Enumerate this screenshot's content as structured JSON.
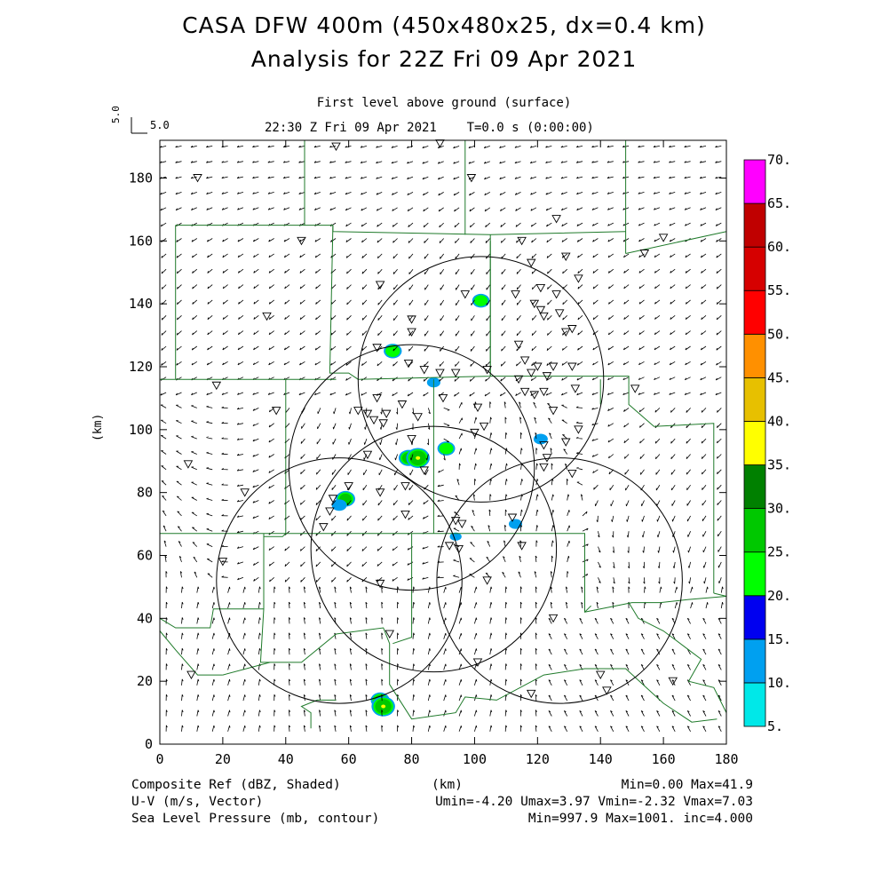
{
  "header": {
    "title1": "CASA DFW 400m (450x480x25, dx=0.4 km)",
    "title2": "Analysis for 22Z Fri 09 Apr 2021",
    "level": "First level above ground (surface)",
    "valid_time": "22:30 Z Fri 09 Apr 2021    T=0.0 s (0:00:00)",
    "ref_vector_label": "5.0",
    "ref_vector_text": "5.0"
  },
  "footer": {
    "left": [
      "Composite Ref (dBZ, Shaded)",
      "U-V (m/s, Vector)",
      "Sea Level Pressure (mb, contour)"
    ],
    "center": "(km)",
    "right": [
      "Min=0.00 Max=41.9",
      "Umin=-4.20 Umax=3.97 Vmin=-2.32 Vmax=7.03",
      "Min=997.9 Max=1001. inc=4.000"
    ]
  },
  "colors": {
    "boundary": "#1f7a2a",
    "ring": "#000000",
    "vector": "#000000"
  },
  "chart_data": {
    "type": "heatmap",
    "xlabel": "",
    "ylabel": "(km)",
    "xlim": [
      0,
      180
    ],
    "ylim": [
      0,
      192
    ],
    "xticks": [
      0,
      20,
      40,
      60,
      80,
      100,
      120,
      140,
      160,
      180
    ],
    "yticks": [
      0,
      20,
      40,
      60,
      80,
      100,
      120,
      140,
      160,
      180
    ],
    "colorbar": {
      "labels": [
        "5.",
        "10.",
        "15.",
        "20.",
        "25.",
        "30.",
        "35.",
        "40.",
        "45.",
        "50.",
        "55.",
        "60.",
        "65.",
        "70."
      ],
      "colors": [
        "#00e8e8",
        "#00a0f0",
        "#0000f0",
        "#00ff00",
        "#00c800",
        "#008000",
        "#ffff00",
        "#e7c000",
        "#ff9000",
        "#ff0000",
        "#d60000",
        "#c00000",
        "#ff00ff"
      ]
    },
    "radar_rings": [
      {
        "cx": 102,
        "cy": 116,
        "r": 39
      },
      {
        "cx": 80,
        "cy": 88,
        "r": 39
      },
      {
        "cx": 57,
        "cy": 52,
        "r": 39
      },
      {
        "cx": 87,
        "cy": 62,
        "r": 39
      },
      {
        "cx": 127,
        "cy": 52,
        "r": 39
      }
    ],
    "reflectivity_cells": [
      {
        "x": 102,
        "y": 141,
        "dbz": 22
      },
      {
        "x": 74,
        "y": 125,
        "dbz": 24
      },
      {
        "x": 87,
        "y": 115,
        "dbz": 12
      },
      {
        "x": 121,
        "y": 97,
        "dbz": 14
      },
      {
        "x": 91,
        "y": 94,
        "dbz": 23
      },
      {
        "x": 79,
        "y": 91,
        "dbz": 28
      },
      {
        "x": 82,
        "y": 91,
        "dbz": 38
      },
      {
        "x": 59,
        "y": 78,
        "dbz": 27
      },
      {
        "x": 57,
        "y": 76,
        "dbz": 16
      },
      {
        "x": 113,
        "y": 70,
        "dbz": 12
      },
      {
        "x": 94,
        "y": 66,
        "dbz": 8
      },
      {
        "x": 70,
        "y": 14,
        "dbz": 26
      },
      {
        "x": 71,
        "y": 12,
        "dbz": 38
      }
    ],
    "stations": [
      [
        56,
        190
      ],
      [
        89,
        191
      ],
      [
        12,
        180
      ],
      [
        99,
        180
      ],
      [
        126,
        167
      ],
      [
        45,
        160
      ],
      [
        115,
        160
      ],
      [
        160,
        161
      ],
      [
        154,
        156
      ],
      [
        129,
        155
      ],
      [
        118,
        153
      ],
      [
        133,
        148
      ],
      [
        70,
        146
      ],
      [
        121,
        145
      ],
      [
        97,
        143
      ],
      [
        113,
        143
      ],
      [
        126,
        143
      ],
      [
        119,
        140
      ],
      [
        121,
        138
      ],
      [
        122,
        136
      ],
      [
        127,
        137
      ],
      [
        34,
        136
      ],
      [
        80,
        135
      ],
      [
        131,
        132
      ],
      [
        80,
        131
      ],
      [
        129,
        131
      ],
      [
        69,
        126
      ],
      [
        79,
        121
      ],
      [
        114,
        127
      ],
      [
        116,
        122
      ],
      [
        120,
        120
      ],
      [
        125,
        120
      ],
      [
        118,
        118
      ],
      [
        94,
        118
      ],
      [
        84,
        119
      ],
      [
        89,
        118
      ],
      [
        104,
        119
      ],
      [
        131,
        120
      ],
      [
        123,
        117
      ],
      [
        114,
        116
      ],
      [
        122,
        112
      ],
      [
        18,
        114
      ],
      [
        90,
        110
      ],
      [
        119,
        111
      ],
      [
        116,
        112
      ],
      [
        132,
        113
      ],
      [
        151,
        113
      ],
      [
        69,
        110
      ],
      [
        77,
        108
      ],
      [
        63,
        106
      ],
      [
        37,
        106
      ],
      [
        66,
        105
      ],
      [
        72,
        105
      ],
      [
        68,
        103
      ],
      [
        71,
        102
      ],
      [
        101,
        107
      ],
      [
        125,
        106
      ],
      [
        103,
        101
      ],
      [
        82,
        104
      ],
      [
        100,
        99
      ],
      [
        80,
        97
      ],
      [
        129,
        96
      ],
      [
        122,
        95
      ],
      [
        123,
        91
      ],
      [
        133,
        100
      ],
      [
        66,
        92
      ],
      [
        131,
        86
      ],
      [
        122,
        88
      ],
      [
        9,
        89
      ],
      [
        84,
        87
      ],
      [
        78,
        82
      ],
      [
        27,
        80
      ],
      [
        70,
        80
      ],
      [
        60,
        82
      ],
      [
        55,
        78
      ],
      [
        54,
        74
      ],
      [
        78,
        73
      ],
      [
        52,
        69
      ],
      [
        94,
        71
      ],
      [
        96,
        70
      ],
      [
        112,
        72
      ],
      [
        92,
        63
      ],
      [
        95,
        62
      ],
      [
        104,
        52
      ],
      [
        115,
        63
      ],
      [
        20,
        58
      ],
      [
        70,
        51
      ],
      [
        125,
        40
      ],
      [
        73,
        35
      ],
      [
        101,
        26
      ],
      [
        140,
        22
      ],
      [
        10,
        22
      ],
      [
        163,
        20
      ],
      [
        118,
        16
      ],
      [
        142,
        17
      ]
    ],
    "boundaries": [
      [
        [
          46,
          192
        ],
        [
          46,
          165
        ]
      ],
      [
        [
          97,
          192
        ],
        [
          97,
          162
        ]
      ],
      [
        [
          148,
          192
        ],
        [
          148,
          156
        ]
      ],
      [
        [
          5,
          165
        ],
        [
          55,
          165
        ]
      ],
      [
        [
          55,
          165
        ],
        [
          55,
          163
        ],
        [
          105,
          162
        ],
        [
          148,
          163
        ]
      ],
      [
        [
          148,
          156
        ],
        [
          180,
          163
        ]
      ],
      [
        [
          5,
          165
        ],
        [
          5,
          116
        ]
      ],
      [
        [
          0,
          116
        ],
        [
          5,
          116
        ]
      ],
      [
        [
          55,
          165
        ],
        [
          54,
          118
        ],
        [
          60,
          118
        ],
        [
          63,
          116
        ],
        [
          105,
          117
        ],
        [
          105,
          160
        ]
      ],
      [
        [
          105,
          162
        ],
        [
          105,
          117
        ]
      ],
      [
        [
          5,
          116
        ],
        [
          56,
          116
        ]
      ],
      [
        [
          40,
          116
        ],
        [
          40,
          67
        ]
      ],
      [
        [
          87,
          116
        ],
        [
          87,
          67
        ]
      ],
      [
        [
          140,
          116
        ],
        [
          140,
          108
        ]
      ],
      [
        [
          105,
          117
        ],
        [
          149,
          117
        ],
        [
          149,
          108
        ],
        [
          157,
          101
        ],
        [
          176,
          102
        ],
        [
          176,
          48
        ]
      ],
      [
        [
          0,
          67
        ],
        [
          33,
          67
        ]
      ],
      [
        [
          33,
          67
        ],
        [
          33,
          57
        ]
      ],
      [
        [
          33,
          67
        ],
        [
          40,
          67
        ]
      ],
      [
        [
          40,
          67
        ],
        [
          135,
          67
        ],
        [
          135,
          42
        ],
        [
          150,
          45
        ],
        [
          159,
          45
        ],
        [
          168,
          46
        ],
        [
          180,
          47
        ]
      ],
      [
        [
          40,
          67
        ],
        [
          39,
          66
        ],
        [
          33,
          66
        ]
      ],
      [
        [
          33,
          66
        ],
        [
          33,
          43
        ],
        [
          17,
          43
        ],
        [
          16,
          37
        ],
        [
          5,
          37
        ],
        [
          0,
          40
        ]
      ],
      [
        [
          33,
          43
        ],
        [
          32,
          26
        ],
        [
          45,
          26
        ],
        [
          56,
          35
        ],
        [
          71,
          37
        ],
        [
          73,
          32
        ],
        [
          73,
          19
        ],
        [
          80,
          8
        ],
        [
          94,
          10
        ],
        [
          97,
          15
        ],
        [
          107,
          14
        ],
        [
          122,
          22
        ],
        [
          135,
          24
        ],
        [
          148,
          24
        ],
        [
          160,
          13
        ],
        [
          169,
          7
        ],
        [
          177,
          8
        ]
      ],
      [
        [
          0,
          36
        ],
        [
          5,
          30
        ],
        [
          12,
          22
        ],
        [
          20,
          22
        ]
      ],
      [
        [
          20,
          22
        ],
        [
          35,
          26
        ]
      ],
      [
        [
          48,
          5
        ],
        [
          48,
          10
        ],
        [
          45,
          12
        ],
        [
          50,
          14
        ],
        [
          56,
          14
        ]
      ],
      [
        [
          80,
          67
        ],
        [
          80,
          34
        ],
        [
          74,
          32
        ]
      ],
      [
        [
          135,
          42
        ],
        [
          137,
          44
        ]
      ],
      [
        [
          149,
          45
        ],
        [
          152,
          40
        ],
        [
          160,
          36
        ],
        [
          168,
          30
        ],
        [
          172,
          27
        ],
        [
          168,
          20
        ],
        [
          176,
          18
        ],
        [
          180,
          10
        ]
      ],
      [
        [
          176,
          48
        ],
        [
          180,
          47
        ]
      ]
    ]
  }
}
